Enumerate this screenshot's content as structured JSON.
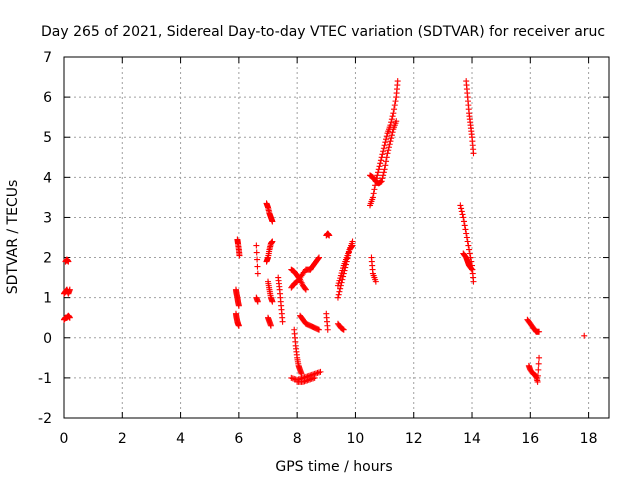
{
  "chart_data": {
    "type": "scatter",
    "title": "Day 265 of 2021, Sidereal Day-to-day VTEC variation (SDTVAR) for receiver aruc",
    "xlabel": "GPS time / hours",
    "ylabel": "SDTVAR / TECUs",
    "xlim": [
      0,
      18.7
    ],
    "ylim": [
      -2,
      7
    ],
    "xticks": [
      0,
      2,
      4,
      6,
      8,
      10,
      12,
      14,
      16,
      18
    ],
    "yticks": [
      -2,
      -1,
      0,
      1,
      2,
      3,
      4,
      5,
      6,
      7
    ],
    "grid": true,
    "marker": "+",
    "color": "#ff0000",
    "segments": [
      {
        "x": [
          0.0,
          0.05,
          0.1,
          0.15,
          0.2
        ],
        "y": [
          1.1,
          1.15,
          1.2,
          1.1,
          1.2
        ]
      },
      {
        "x": [
          0.0,
          0.05,
          0.1,
          0.15,
          0.2
        ],
        "y": [
          0.45,
          0.5,
          0.5,
          0.55,
          0.5
        ]
      },
      {
        "x": [
          0.05,
          0.1,
          0.15
        ],
        "y": [
          1.9,
          1.95,
          1.9
        ]
      },
      {
        "x": [
          5.9,
          5.92,
          5.95,
          5.97,
          6.0
        ],
        "y": [
          1.2,
          1.1,
          1.0,
          0.9,
          0.8
        ]
      },
      {
        "x": [
          5.9,
          5.92,
          5.95,
          5.97,
          6.0
        ],
        "y": [
          0.6,
          0.5,
          0.4,
          0.35,
          0.3
        ]
      },
      {
        "x": [
          5.95,
          5.97,
          6.0,
          6.02
        ],
        "y": [
          2.45,
          2.35,
          2.2,
          2.05
        ]
      },
      {
        "x": [
          6.6,
          6.65
        ],
        "y": [
          2.3,
          1.6
        ]
      },
      {
        "x": [
          6.6,
          6.65
        ],
        "y": [
          1.0,
          0.9
        ]
      },
      {
        "x": [
          6.95,
          7.0,
          7.05,
          7.1,
          7.15
        ],
        "y": [
          3.35,
          3.25,
          3.1,
          3.0,
          2.9
        ]
      },
      {
        "x": [
          6.95,
          7.0,
          7.05,
          7.1,
          7.15
        ],
        "y": [
          1.9,
          2.0,
          2.2,
          2.35,
          2.4
        ]
      },
      {
        "x": [
          7.0,
          7.05,
          7.1,
          7.15
        ],
        "y": [
          1.4,
          1.2,
          1.0,
          0.9
        ]
      },
      {
        "x": [
          7.0,
          7.05,
          7.1
        ],
        "y": [
          0.5,
          0.4,
          0.3
        ]
      },
      {
        "x": [
          7.35,
          7.4,
          7.45,
          7.5
        ],
        "y": [
          1.5,
          1.2,
          0.8,
          0.4
        ]
      },
      {
        "x": [
          7.8,
          7.9,
          8.0,
          8.1,
          8.2,
          8.3
        ],
        "y": [
          1.7,
          1.65,
          1.55,
          1.45,
          1.3,
          1.2
        ]
      },
      {
        "x": [
          7.8,
          7.9,
          8.0,
          8.15,
          8.3,
          8.45
        ],
        "y": [
          1.25,
          1.35,
          1.4,
          1.55,
          1.7,
          1.7
        ]
      },
      {
        "x": [
          7.9,
          7.95,
          8.0,
          8.05,
          8.1,
          8.15
        ],
        "y": [
          0.2,
          -0.2,
          -0.5,
          -0.7,
          -0.8,
          -0.9
        ]
      },
      {
        "x": [
          7.8,
          8.0,
          8.2,
          8.4,
          8.6,
          8.8
        ],
        "y": [
          -1.0,
          -1.05,
          -1.0,
          -0.95,
          -0.9,
          -0.85
        ]
      },
      {
        "x": [
          8.0,
          8.2,
          8.4,
          8.6
        ],
        "y": [
          -1.1,
          -1.1,
          -1.05,
          -1.0
        ]
      },
      {
        "x": [
          8.1,
          8.2,
          8.3,
          8.45,
          8.6,
          8.75
        ],
        "y": [
          0.55,
          0.45,
          0.35,
          0.3,
          0.25,
          0.2
        ]
      },
      {
        "x": [
          8.45,
          8.55,
          8.65,
          8.75
        ],
        "y": [
          1.7,
          1.8,
          1.9,
          2.0
        ]
      },
      {
        "x": [
          9.0,
          9.05,
          9.1
        ],
        "y": [
          2.55,
          2.6,
          2.55
        ]
      },
      {
        "x": [
          9.0,
          9.05
        ],
        "y": [
          0.6,
          0.2
        ]
      },
      {
        "x": [
          9.4,
          9.5,
          9.6,
          9.7,
          9.8,
          9.9
        ],
        "y": [
          1.0,
          1.3,
          1.6,
          1.9,
          2.2,
          2.4
        ]
      },
      {
        "x": [
          9.4,
          9.5,
          9.6,
          9.7,
          9.8,
          9.9
        ],
        "y": [
          1.3,
          1.55,
          1.8,
          2.0,
          2.2,
          2.3
        ]
      },
      {
        "x": [
          9.4,
          9.5,
          9.6
        ],
        "y": [
          0.35,
          0.25,
          0.2
        ]
      },
      {
        "x": [
          10.5,
          10.6,
          10.7,
          10.8,
          10.9,
          11.0,
          11.1,
          11.2,
          11.3,
          11.4,
          11.45
        ],
        "y": [
          3.3,
          3.5,
          3.9,
          4.2,
          4.5,
          4.8,
          5.1,
          5.3,
          5.6,
          6.0,
          6.4
        ]
      },
      {
        "x": [
          10.5,
          10.6,
          10.7,
          10.8,
          10.9,
          11.0,
          11.1,
          11.2,
          11.3,
          11.4
        ],
        "y": [
          4.05,
          4.0,
          3.9,
          3.85,
          3.9,
          4.2,
          4.6,
          4.9,
          5.2,
          5.4
        ]
      },
      {
        "x": [
          10.55,
          10.6,
          10.7
        ],
        "y": [
          2.0,
          1.6,
          1.4
        ]
      },
      {
        "x": [
          13.6,
          13.7,
          13.8,
          13.9,
          14.0,
          14.05
        ],
        "y": [
          3.3,
          3.0,
          2.6,
          2.2,
          1.8,
          1.4
        ]
      },
      {
        "x": [
          13.7,
          13.8,
          13.85,
          13.9,
          14.0
        ],
        "y": [
          2.1,
          2.0,
          1.9,
          1.8,
          1.7
        ]
      },
      {
        "x": [
          13.8,
          13.85,
          13.9,
          13.95,
          14.0,
          14.05
        ],
        "y": [
          6.4,
          6.0,
          5.6,
          5.3,
          5.0,
          4.6
        ]
      },
      {
        "x": [
          15.9,
          16.0,
          16.1,
          16.2,
          16.3
        ],
        "y": [
          0.45,
          0.35,
          0.25,
          0.15,
          0.15
        ]
      },
      {
        "x": [
          15.95,
          16.0,
          16.1,
          16.2,
          16.25,
          16.3
        ],
        "y": [
          -0.7,
          -0.8,
          -0.9,
          -0.95,
          -1.1,
          -0.5
        ]
      },
      {
        "x": [
          17.85
        ],
        "y": [
          0.05
        ]
      }
    ]
  }
}
